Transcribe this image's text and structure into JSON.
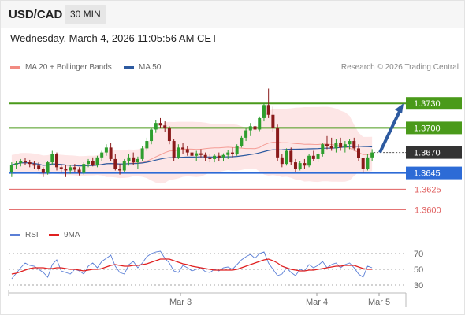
{
  "header": {
    "symbol": "USD/CAD",
    "timeframe": "30 MIN",
    "timestamp": "Wednesday, March 4, 2026 11:05:56 AM CET"
  },
  "legend": {
    "ma20_bb": {
      "label": "MA 20 + Bollinger Bands",
      "color": "#f28b82"
    },
    "ma50": {
      "label": "MA 50",
      "color": "#2d5aa0"
    },
    "copyright": "Research © 2026 Trading Central"
  },
  "rsi_legend": {
    "rsi": {
      "label": "RSI",
      "color": "#5b7fd6"
    },
    "ma9": {
      "label": "9MA",
      "color": "#e02020"
    }
  },
  "colors": {
    "up": "#2e9e2e",
    "down": "#8a1a1a",
    "resistance": "#4a9a1a",
    "support_current": "#2d6bd6",
    "support": "#e06060",
    "band": "#fde2e2",
    "arrow": "#2d5aa0",
    "last_price": "#333333"
  },
  "chart_data": [
    {
      "type": "candlestick",
      "title": "",
      "x_labels": [
        "Mar 3",
        "Mar 4",
        "Mar 5"
      ],
      "ylim": [
        1.3585,
        1.376
      ],
      "levels": [
        {
          "price": 1.373,
          "label": "1.3730",
          "kind": "resistance"
        },
        {
          "price": 1.37,
          "label": "1.3700",
          "kind": "resistance"
        },
        {
          "price": 1.3645,
          "label": "1.3645",
          "kind": "support_current"
        },
        {
          "price": 1.3625,
          "label": "1.3625",
          "kind": "support"
        },
        {
          "price": 1.36,
          "label": "1.3600",
          "kind": "support"
        }
      ],
      "last_price": {
        "price": 1.367,
        "label": "1.3670"
      },
      "arrow": {
        "from_price": 1.367,
        "to_price": 1.373,
        "direction": "up"
      },
      "candles": [
        [
          1.3646,
          1.3658,
          1.364,
          1.3655
        ],
        [
          1.3655,
          1.366,
          1.365,
          1.3657
        ],
        [
          1.3657,
          1.3662,
          1.3653,
          1.366
        ],
        [
          1.366,
          1.3663,
          1.3655,
          1.3658
        ],
        [
          1.3658,
          1.3661,
          1.3652,
          1.3656
        ],
        [
          1.3656,
          1.3659,
          1.365,
          1.3654
        ],
        [
          1.3654,
          1.3658,
          1.3648,
          1.365
        ],
        [
          1.365,
          1.3652,
          1.364,
          1.3645
        ],
        [
          1.3645,
          1.366,
          1.3643,
          1.3658
        ],
        [
          1.3658,
          1.3672,
          1.3655,
          1.3668
        ],
        [
          1.3668,
          1.367,
          1.3648,
          1.3652
        ],
        [
          1.3652,
          1.3656,
          1.3645,
          1.365
        ],
        [
          1.365,
          1.3655,
          1.364,
          1.3648
        ],
        [
          1.3648,
          1.3655,
          1.3644,
          1.3652
        ],
        [
          1.3652,
          1.3656,
          1.3646,
          1.3649
        ],
        [
          1.3649,
          1.3652,
          1.3642,
          1.3645
        ],
        [
          1.3645,
          1.3658,
          1.3643,
          1.3656
        ],
        [
          1.3656,
          1.3662,
          1.3652,
          1.366
        ],
        [
          1.366,
          1.3664,
          1.3653,
          1.3655
        ],
        [
          1.3655,
          1.3666,
          1.3652,
          1.3664
        ],
        [
          1.3664,
          1.3672,
          1.366,
          1.367
        ],
        [
          1.367,
          1.368,
          1.3666,
          1.3676
        ],
        [
          1.3676,
          1.3682,
          1.366,
          1.3662
        ],
        [
          1.3662,
          1.3668,
          1.3648,
          1.365
        ],
        [
          1.365,
          1.3656,
          1.3643,
          1.3648
        ],
        [
          1.3648,
          1.3662,
          1.3646,
          1.366
        ],
        [
          1.366,
          1.3668,
          1.3654,
          1.3664
        ],
        [
          1.3664,
          1.367,
          1.3655,
          1.3658
        ],
        [
          1.3658,
          1.3665,
          1.365,
          1.3662
        ],
        [
          1.3662,
          1.3678,
          1.366,
          1.3675
        ],
        [
          1.3675,
          1.3688,
          1.3672,
          1.3684
        ],
        [
          1.3684,
          1.37,
          1.368,
          1.3698
        ],
        [
          1.3698,
          1.371,
          1.3694,
          1.3706
        ],
        [
          1.3706,
          1.3712,
          1.37,
          1.3703
        ],
        [
          1.3703,
          1.3708,
          1.3695,
          1.37
        ],
        [
          1.37,
          1.3702,
          1.368,
          1.3684
        ],
        [
          1.3684,
          1.3686,
          1.366,
          1.3664
        ],
        [
          1.3664,
          1.368,
          1.3662,
          1.3676
        ],
        [
          1.3676,
          1.3682,
          1.3668,
          1.3674
        ],
        [
          1.3674,
          1.3678,
          1.3666,
          1.367
        ],
        [
          1.367,
          1.3675,
          1.3663,
          1.3666
        ],
        [
          1.3666,
          1.3672,
          1.366,
          1.3669
        ],
        [
          1.3669,
          1.3674,
          1.3664,
          1.3667
        ],
        [
          1.3667,
          1.367,
          1.366,
          1.3664
        ],
        [
          1.3664,
          1.3668,
          1.3658,
          1.3662
        ],
        [
          1.3662,
          1.3668,
          1.3658,
          1.3666
        ],
        [
          1.3666,
          1.367,
          1.366,
          1.3664
        ],
        [
          1.3664,
          1.3669,
          1.3659,
          1.3667
        ],
        [
          1.3667,
          1.3673,
          1.3662,
          1.367
        ],
        [
          1.367,
          1.3676,
          1.3664,
          1.3668
        ],
        [
          1.3668,
          1.368,
          1.3666,
          1.3678
        ],
        [
          1.3678,
          1.369,
          1.3676,
          1.3688
        ],
        [
          1.3688,
          1.37,
          1.3684,
          1.3697
        ],
        [
          1.3697,
          1.3706,
          1.369,
          1.3702
        ],
        [
          1.3702,
          1.371,
          1.3695,
          1.3698
        ],
        [
          1.3698,
          1.3714,
          1.3696,
          1.3712
        ],
        [
          1.3712,
          1.373,
          1.3708,
          1.3728
        ],
        [
          1.3728,
          1.3748,
          1.3712,
          1.3716
        ],
        [
          1.3716,
          1.3726,
          1.3695,
          1.37
        ],
        [
          1.37,
          1.3704,
          1.366,
          1.3664
        ],
        [
          1.3664,
          1.3668,
          1.3652,
          1.3656
        ],
        [
          1.3656,
          1.3675,
          1.3654,
          1.3672
        ],
        [
          1.3672,
          1.3676,
          1.3655,
          1.3658
        ],
        [
          1.3658,
          1.3662,
          1.3646,
          1.365
        ],
        [
          1.365,
          1.366,
          1.3648,
          1.3657
        ],
        [
          1.3657,
          1.3662,
          1.365,
          1.3654
        ],
        [
          1.3654,
          1.3668,
          1.3652,
          1.3666
        ],
        [
          1.3666,
          1.3672,
          1.366,
          1.3662
        ],
        [
          1.3662,
          1.367,
          1.3658,
          1.3668
        ],
        [
          1.3668,
          1.3682,
          1.3665,
          1.368
        ],
        [
          1.368,
          1.369,
          1.3674,
          1.3678
        ],
        [
          1.3678,
          1.3688,
          1.3672,
          1.3675
        ],
        [
          1.3675,
          1.3686,
          1.367,
          1.3682
        ],
        [
          1.3682,
          1.3688,
          1.3672,
          1.3676
        ],
        [
          1.3676,
          1.3684,
          1.367,
          1.368
        ],
        [
          1.368,
          1.3686,
          1.3674,
          1.3684
        ],
        [
          1.3684,
          1.3688,
          1.3672,
          1.3675
        ],
        [
          1.3675,
          1.368,
          1.366,
          1.3663
        ],
        [
          1.3663,
          1.3662,
          1.3645,
          1.365
        ],
        [
          1.365,
          1.3668,
          1.3648,
          1.3664
        ],
        [
          1.3664,
          1.3674,
          1.366,
          1.367
        ]
      ]
    },
    {
      "type": "line",
      "title": "",
      "ylim": [
        20,
        80
      ],
      "yticks": [
        "70",
        "50",
        "30"
      ],
      "series": [
        {
          "name": "RSI",
          "values": [
            38,
            45,
            52,
            58,
            55,
            54,
            50,
            46,
            40,
            56,
            62,
            48,
            46,
            44,
            50,
            48,
            44,
            54,
            58,
            52,
            60,
            64,
            68,
            54,
            46,
            44,
            56,
            60,
            52,
            58,
            66,
            70,
            72,
            73,
            64,
            58,
            48,
            46,
            55,
            52,
            48,
            50,
            52,
            47,
            46,
            50,
            48,
            52,
            53,
            50,
            56,
            62,
            66,
            69,
            64,
            70,
            72,
            58,
            50,
            42,
            44,
            52,
            46,
            42,
            50,
            48,
            56,
            52,
            55,
            60,
            52,
            56,
            58,
            52,
            56,
            58,
            52,
            44,
            40,
            54,
            52
          ]
        },
        {
          "name": "9MA",
          "values": [
            44,
            45,
            47,
            49,
            51,
            52,
            52,
            52,
            51,
            51,
            52,
            52,
            51,
            50,
            50,
            49,
            48,
            49,
            50,
            50,
            51,
            53,
            55,
            56,
            55,
            54,
            54,
            55,
            55,
            56,
            57,
            59,
            61,
            63,
            63,
            63,
            61,
            59,
            57,
            56,
            54,
            53,
            52,
            51,
            50,
            49,
            49,
            49,
            49,
            49,
            50,
            52,
            54,
            56,
            58,
            60,
            62,
            63,
            61,
            58,
            54,
            52,
            50,
            49,
            48,
            48,
            49,
            49,
            50,
            51,
            52,
            53,
            54,
            54,
            55,
            55,
            55,
            53,
            51,
            50,
            50
          ]
        }
      ]
    }
  ]
}
